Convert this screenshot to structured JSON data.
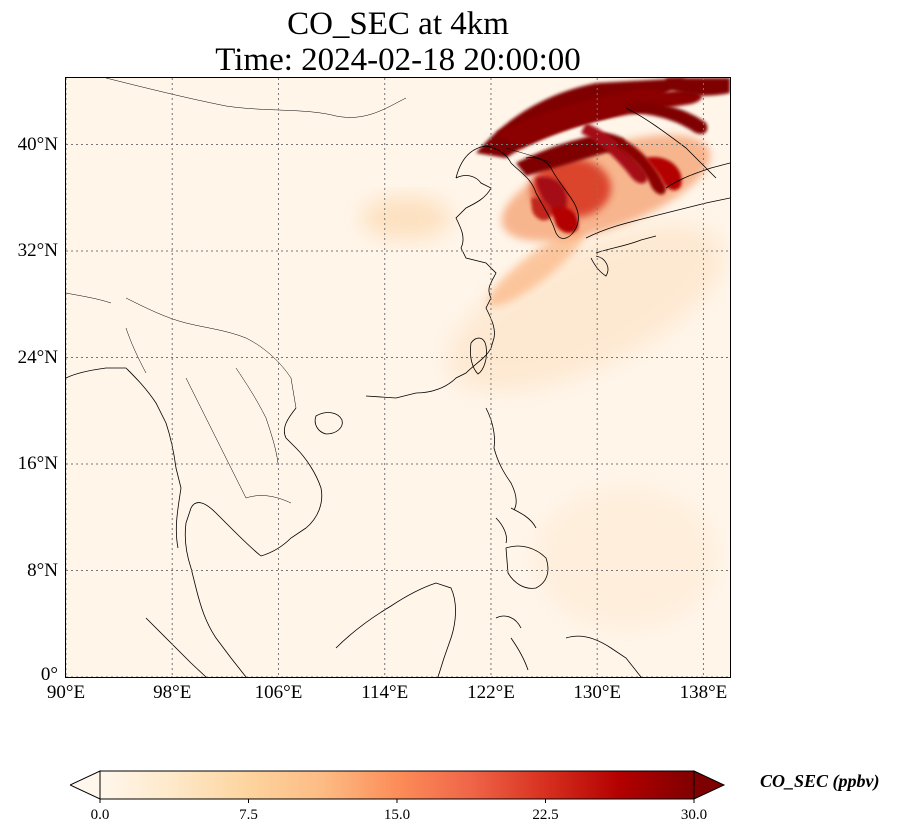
{
  "title": {
    "line1": "CO_SEC at 4km",
    "line2": "Time: 2024-02-18 20:00:00"
  },
  "map": {
    "lon_range": [
      90,
      140
    ],
    "lat_range": [
      0,
      45
    ],
    "lon_ticks": [
      {
        "value": 90,
        "label": "90°E"
      },
      {
        "value": 98,
        "label": "98°E"
      },
      {
        "value": 106,
        "label": "106°E"
      },
      {
        "value": 114,
        "label": "114°E"
      },
      {
        "value": 122,
        "label": "122°E"
      },
      {
        "value": 130,
        "label": "130°E"
      },
      {
        "value": 138,
        "label": "138°E"
      }
    ],
    "lat_ticks": [
      {
        "value": 0,
        "label": "0°"
      },
      {
        "value": 8,
        "label": "8°N"
      },
      {
        "value": 16,
        "label": "16°N"
      },
      {
        "value": 24,
        "label": "24°N"
      },
      {
        "value": 32,
        "label": "32°N"
      },
      {
        "value": 40,
        "label": "40°N"
      }
    ],
    "gridlines": true,
    "background_color": "#fff5e9",
    "plume_colors": [
      "#fdd9ae",
      "#fc8d59",
      "#e34a33",
      "#b30000",
      "#7f0000"
    ]
  },
  "colorbar": {
    "label": "CO_SEC (ppbv)",
    "min": 0,
    "max": 30,
    "extend": "both",
    "ticks": [
      {
        "value": 0,
        "label": "0.0"
      },
      {
        "value": 7.5,
        "label": "7.5"
      },
      {
        "value": 15,
        "label": "15.0"
      },
      {
        "value": 22.5,
        "label": "22.5"
      },
      {
        "value": 30,
        "label": "30.0"
      }
    ],
    "colormap": [
      "#fff7ec",
      "#fee8c8",
      "#fdd49e",
      "#fdbb84",
      "#fc8d59",
      "#ef6548",
      "#d7301f",
      "#b30000",
      "#7f0000"
    ]
  }
}
